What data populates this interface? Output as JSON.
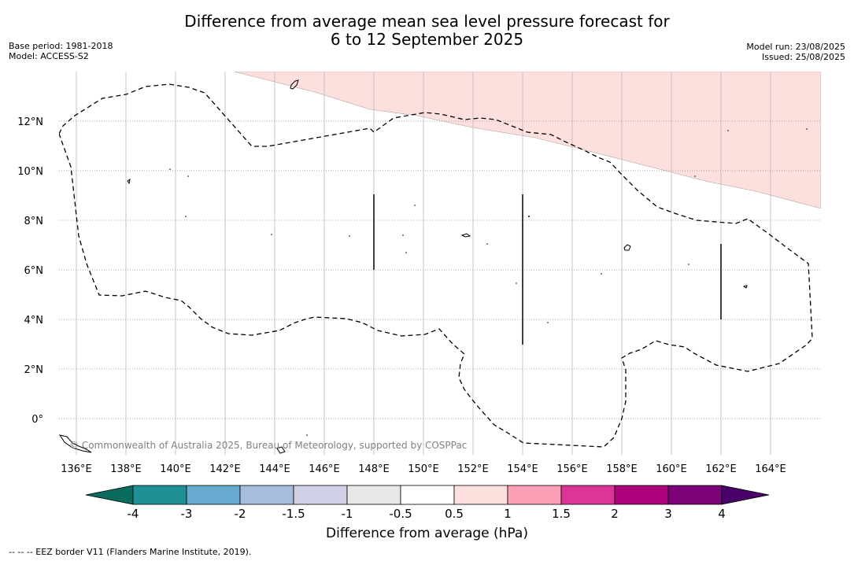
{
  "title": {
    "line1": "Difference from average mean sea level pressure forecast for",
    "line2": "6 to 12 September 2025"
  },
  "meta_left": {
    "base_period": "Base period: 1981-2018",
    "model": "Model: ACCESS-S2"
  },
  "meta_right": {
    "model_run": "Model run: 23/08/2025",
    "issued": "Issued: 25/08/2025"
  },
  "map": {
    "lon_labels": [
      "136°E",
      "138°E",
      "140°E",
      "142°E",
      "144°E",
      "146°E",
      "148°E",
      "150°E",
      "152°E",
      "154°E",
      "156°E",
      "158°E",
      "160°E",
      "162°E",
      "164°E"
    ],
    "lat_labels": [
      "12°N",
      "10°N",
      "8°N",
      "6°N",
      "4°N",
      "2°N",
      "0°"
    ],
    "copyright": "© Commonwealth of Australia 2025, Bureau of Meteorology, supported by COSPPac",
    "anomaly_fill_color": "#fde0de",
    "eez_line_style": "dashed"
  },
  "colorbar": {
    "ticks": [
      "-4",
      "-3",
      "-2",
      "-1.5",
      "-1",
      "-0.5",
      "0.5",
      "1",
      "1.5",
      "2",
      "3",
      "4"
    ],
    "colors": [
      "#0b6b5c",
      "#1f9196",
      "#67a9cf",
      "#a6bddb",
      "#d0d1e6",
      "#e8e8e8",
      "#ffffff",
      "#fde0dd",
      "#fa9fb5",
      "#dd3497",
      "#ae017e",
      "#7a0177",
      "#49006a"
    ],
    "label": "Difference from average (hPa)"
  },
  "footer": {
    "legend": "--  --  -- EEZ border V11 (Flanders Marine Institute, 2019)."
  }
}
